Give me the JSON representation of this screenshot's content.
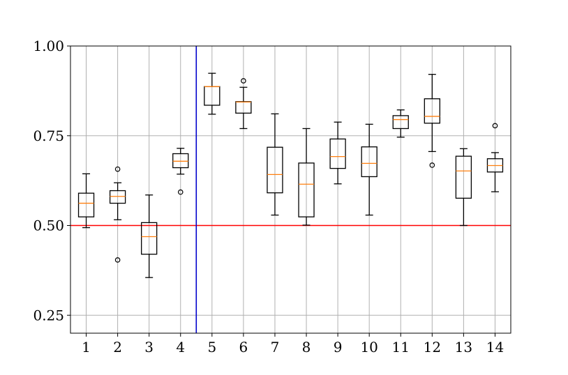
{
  "chart_data": {
    "type": "boxplot",
    "title": "",
    "xlabel": "",
    "ylabel": "",
    "categories": [
      "1",
      "2",
      "3",
      "4",
      "5",
      "6",
      "7",
      "8",
      "9",
      "10",
      "11",
      "12",
      "13",
      "14"
    ],
    "ylim": [
      0.2,
      1.0
    ],
    "yticks": [
      "0.25",
      "0.50",
      "0.75",
      "1.00"
    ],
    "ytick_values": [
      0.25,
      0.5,
      0.75,
      1.0
    ],
    "grid": true,
    "boxes": [
      {
        "label": "1",
        "whisker_low": 0.494,
        "q1": 0.524,
        "median": 0.562,
        "q3": 0.59,
        "whisker_high": 0.644,
        "fliers": []
      },
      {
        "label": "2",
        "whisker_low": 0.516,
        "q1": 0.562,
        "median": 0.581,
        "q3": 0.597,
        "whisker_high": 0.619,
        "fliers": [
          0.657,
          0.404
        ]
      },
      {
        "label": "3",
        "whisker_low": 0.355,
        "q1": 0.42,
        "median": 0.469,
        "q3": 0.508,
        "whisker_high": 0.585,
        "fliers": []
      },
      {
        "label": "4",
        "whisker_low": 0.643,
        "q1": 0.661,
        "median": 0.679,
        "q3": 0.7,
        "whisker_high": 0.715,
        "fliers": [
          0.593
        ]
      },
      {
        "label": "5",
        "whisker_low": 0.81,
        "q1": 0.835,
        "median": 0.887,
        "q3": 0.887,
        "whisker_high": 0.924,
        "fliers": []
      },
      {
        "label": "6",
        "whisker_low": 0.77,
        "q1": 0.813,
        "median": 0.844,
        "q3": 0.845,
        "whisker_high": 0.885,
        "fliers": [
          0.903
        ]
      },
      {
        "label": "7",
        "whisker_low": 0.529,
        "q1": 0.591,
        "median": 0.642,
        "q3": 0.718,
        "whisker_high": 0.811,
        "fliers": []
      },
      {
        "label": "8",
        "whisker_low": 0.501,
        "q1": 0.524,
        "median": 0.615,
        "q3": 0.674,
        "whisker_high": 0.77,
        "fliers": []
      },
      {
        "label": "9",
        "whisker_low": 0.616,
        "q1": 0.659,
        "median": 0.692,
        "q3": 0.741,
        "whisker_high": 0.788,
        "fliers": []
      },
      {
        "label": "10",
        "whisker_low": 0.529,
        "q1": 0.636,
        "median": 0.673,
        "q3": 0.719,
        "whisker_high": 0.782,
        "fliers": []
      },
      {
        "label": "11",
        "whisker_low": 0.746,
        "q1": 0.77,
        "median": 0.795,
        "q3": 0.806,
        "whisker_high": 0.822,
        "fliers": []
      },
      {
        "label": "12",
        "whisker_low": 0.706,
        "q1": 0.785,
        "median": 0.804,
        "q3": 0.853,
        "whisker_high": 0.921,
        "fliers": [
          0.668
        ]
      },
      {
        "label": "13",
        "whisker_low": 0.5,
        "q1": 0.576,
        "median": 0.652,
        "q3": 0.693,
        "whisker_high": 0.714,
        "fliers": []
      },
      {
        "label": "14",
        "whisker_low": 0.594,
        "q1": 0.649,
        "median": 0.667,
        "q3": 0.686,
        "whisker_high": 0.703,
        "fliers": [
          0.778
        ]
      }
    ],
    "reference_lines": [
      {
        "orientation": "horizontal",
        "y": 0.5,
        "color": "#ff0000"
      },
      {
        "orientation": "vertical",
        "x": 4.5,
        "color": "#0000cc"
      }
    ],
    "colors": {
      "median": "#ff7f0e",
      "box": "#000000",
      "grid": "#b0b0b0"
    }
  }
}
